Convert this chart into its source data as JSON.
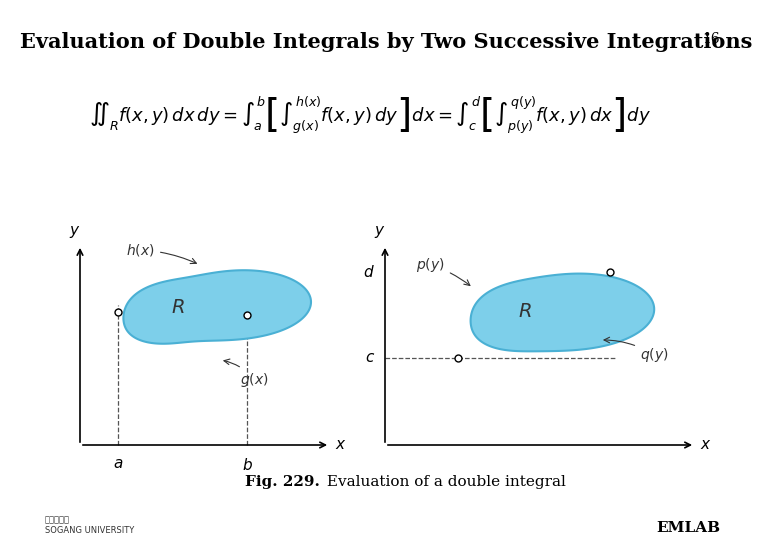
{
  "title": "Evaluation of Double Integrals by Two Successive Integrations",
  "title_fontsize": 15,
  "page_number": "16",
  "formula": "\\iint_{R} f(x,y)\\,dx\\,dy = \\int_{a}^{b}\\left[\\int_{g(x)}^{h(x)} f(x,y)\\,dy\\right]dx = \\int_{c}^{d}\\left[\\int_{p(y)}^{q(y)} f(x,y)\\,dx\\right]dy",
  "caption_bold": "Fig. 229.",
  "caption_normal": " Evaluation of a double integral",
  "bg_color": "#ffffff",
  "blob_fill": "#7dcfea",
  "blob_edge": "#4ab0d4",
  "axis_color": "#000000",
  "label_color": "#333333",
  "dashed_color": "#555555"
}
